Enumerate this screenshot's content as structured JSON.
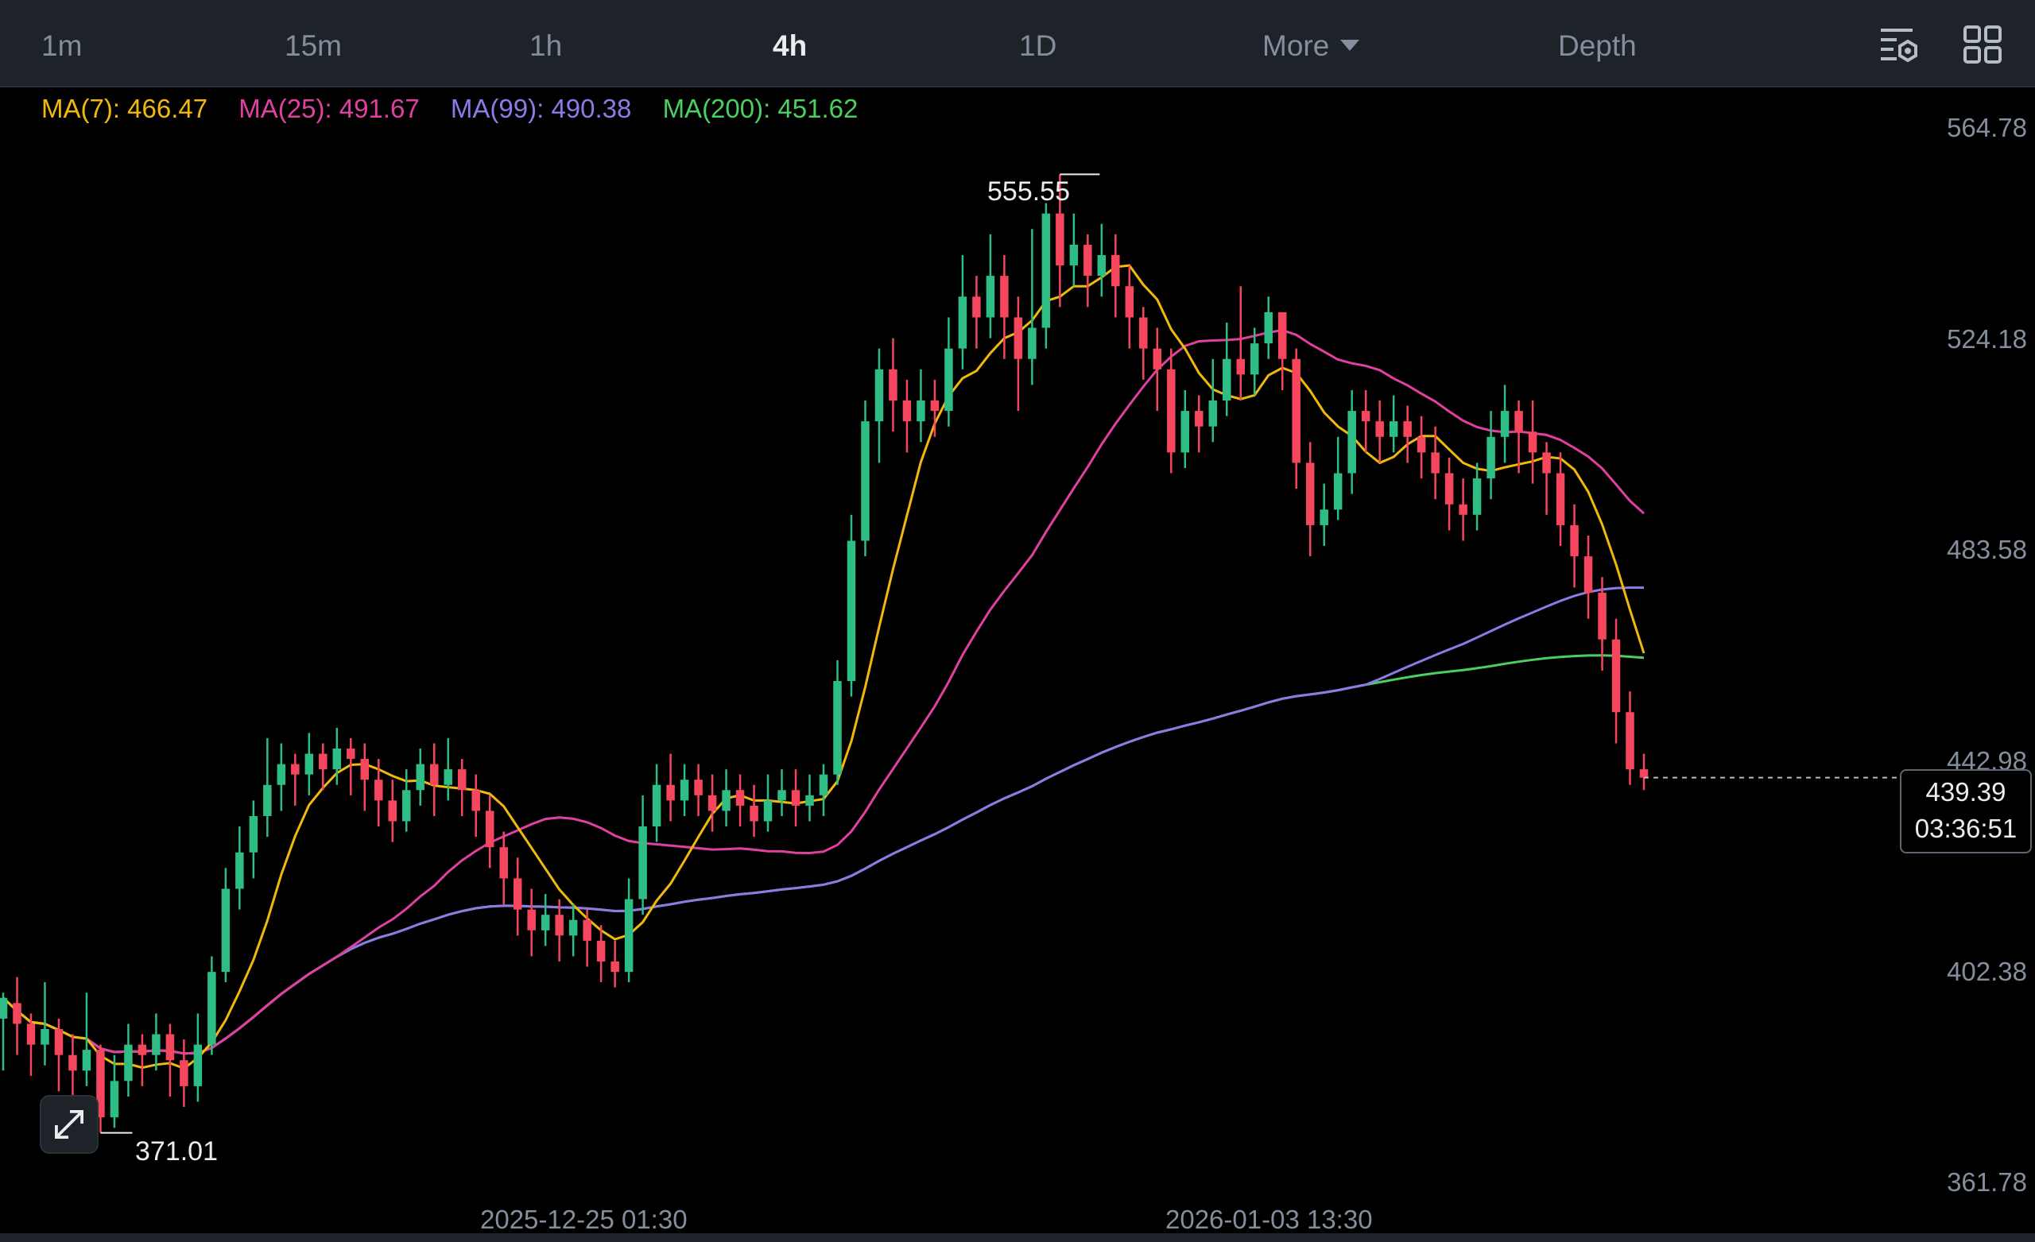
{
  "toolbar": {
    "intervals": [
      "1m",
      "15m",
      "1h",
      "4h",
      "1D"
    ],
    "active_interval": "4h",
    "more_label": "More",
    "depth_label": "Depth"
  },
  "ma_legend": {
    "ma7": "MA(7): 466.47",
    "ma25": "MA(25): 491.67",
    "ma99": "MA(99): 490.38",
    "ma200": "MA(200): 451.62"
  },
  "colors": {
    "up": "#2ebd85",
    "down": "#f6465d",
    "ma7": "#f0b90b",
    "ma25": "#e040a0",
    "ma99": "#8c7ae6",
    "ma200": "#4ccf62"
  },
  "price_axis": [
    "564.78",
    "524.18",
    "483.58",
    "442.98",
    "402.38",
    "361.78"
  ],
  "last_price": {
    "price": "439.39",
    "countdown": "03:36:51"
  },
  "high_label": "555.55",
  "low_label": "371.01",
  "time_axis": [
    "2025-12-25 01:30",
    "2026-01-03 13:30"
  ],
  "chart_data": {
    "type": "candlestick",
    "ylim": [
      361.78,
      564.78
    ],
    "y_ticks": [
      564.78,
      524.18,
      483.58,
      442.98,
      402.38,
      361.78
    ],
    "candles": [
      [
        393,
        397,
        383,
        398
      ],
      [
        396,
        392,
        386,
        401
      ],
      [
        392,
        388,
        382,
        394
      ],
      [
        388,
        391,
        384,
        400
      ],
      [
        391,
        386,
        379,
        393
      ],
      [
        386,
        383,
        377,
        390
      ],
      [
        383,
        387,
        380,
        398
      ],
      [
        387,
        374,
        371.01,
        388
      ],
      [
        374,
        381,
        372,
        386
      ],
      [
        381,
        388,
        378,
        392
      ],
      [
        388,
        386,
        380,
        390
      ],
      [
        386,
        390,
        383,
        394
      ],
      [
        390,
        385,
        378,
        392
      ],
      [
        385,
        380,
        376,
        389
      ],
      [
        380,
        388,
        377,
        394
      ],
      [
        388,
        402,
        386,
        405
      ],
      [
        402,
        418,
        400,
        422
      ],
      [
        418,
        425,
        414,
        430
      ],
      [
        425,
        432,
        420,
        435
      ],
      [
        432,
        438,
        428,
        447
      ],
      [
        438,
        442,
        433,
        446
      ],
      [
        442,
        440,
        434,
        444
      ],
      [
        440,
        444,
        436,
        448
      ],
      [
        444,
        441,
        437,
        446
      ],
      [
        441,
        445,
        438,
        449
      ],
      [
        445,
        443,
        436,
        447
      ],
      [
        443,
        439,
        433,
        446
      ],
      [
        439,
        435,
        430,
        443
      ],
      [
        435,
        431,
        427,
        439
      ],
      [
        431,
        437,
        429,
        441
      ],
      [
        437,
        442,
        434,
        445
      ],
      [
        442,
        438,
        432,
        446
      ],
      [
        438,
        441,
        435,
        447
      ],
      [
        441,
        437,
        432,
        443
      ],
      [
        437,
        433,
        428,
        440
      ],
      [
        433,
        426,
        422,
        436
      ],
      [
        426,
        420,
        415,
        429
      ],
      [
        420,
        414,
        409,
        424
      ],
      [
        414,
        410,
        405,
        418
      ],
      [
        410,
        413,
        407,
        417
      ],
      [
        413,
        409,
        404,
        416
      ],
      [
        409,
        412,
        405,
        415
      ],
      [
        412,
        408,
        403,
        414
      ],
      [
        408,
        404,
        400,
        411
      ],
      [
        404,
        402,
        399,
        408
      ],
      [
        402,
        416,
        400,
        420
      ],
      [
        416,
        430,
        413,
        436
      ],
      [
        430,
        438,
        427,
        442
      ],
      [
        438,
        435,
        431,
        444
      ],
      [
        435,
        439,
        432,
        442
      ],
      [
        439,
        436,
        432,
        442
      ],
      [
        436,
        433,
        429,
        440
      ],
      [
        433,
        437,
        430,
        441
      ],
      [
        437,
        434,
        430,
        440
      ],
      [
        434,
        431,
        428,
        438
      ],
      [
        431,
        435,
        429,
        440
      ],
      [
        435,
        437,
        432,
        441
      ],
      [
        437,
        434,
        430,
        441
      ],
      [
        434,
        436,
        431,
        440
      ],
      [
        436,
        440,
        432,
        442
      ],
      [
        440,
        458,
        438,
        462
      ],
      [
        458,
        485,
        455,
        490
      ],
      [
        485,
        508,
        482,
        512
      ],
      [
        508,
        518,
        500,
        522
      ],
      [
        518,
        512,
        506,
        524
      ],
      [
        512,
        508,
        502,
        516
      ],
      [
        508,
        512,
        504,
        518
      ],
      [
        512,
        510,
        505,
        516
      ],
      [
        510,
        522,
        507,
        528
      ],
      [
        522,
        532,
        518,
        540
      ],
      [
        532,
        528,
        522,
        536
      ],
      [
        528,
        536,
        524,
        544
      ],
      [
        536,
        528,
        520,
        540
      ],
      [
        528,
        520,
        510,
        532
      ],
      [
        520,
        526,
        515,
        545
      ],
      [
        526,
        548,
        522,
        550
      ],
      [
        548,
        538,
        530,
        555.55
      ],
      [
        538,
        542,
        534,
        548
      ],
      [
        542,
        536,
        530,
        544
      ],
      [
        536,
        540,
        532,
        546
      ],
      [
        540,
        534,
        528,
        544
      ],
      [
        534,
        528,
        522,
        538
      ],
      [
        528,
        522,
        516,
        530
      ],
      [
        522,
        518,
        510,
        526
      ],
      [
        518,
        502,
        498,
        522
      ],
      [
        502,
        510,
        499,
        514
      ],
      [
        510,
        507,
        502,
        513
      ],
      [
        507,
        512,
        504,
        520
      ],
      [
        512,
        520,
        509,
        527
      ],
      [
        520,
        517,
        512,
        534
      ],
      [
        517,
        523,
        513,
        526
      ],
      [
        523,
        529,
        520,
        532
      ],
      [
        529,
        520,
        514,
        528
      ],
      [
        520,
        500,
        495,
        522
      ],
      [
        500,
        488,
        482,
        504
      ],
      [
        488,
        491,
        484,
        496
      ],
      [
        491,
        498,
        489,
        505
      ],
      [
        498,
        510,
        494,
        514
      ],
      [
        510,
        508,
        502,
        514
      ],
      [
        508,
        505,
        500,
        512
      ],
      [
        505,
        508,
        502,
        513
      ],
      [
        508,
        505,
        500,
        511
      ],
      [
        505,
        502,
        497,
        509
      ],
      [
        502,
        498,
        493,
        507
      ],
      [
        498,
        492,
        487,
        501
      ],
      [
        492,
        490,
        485,
        497
      ],
      [
        490,
        497,
        487,
        500
      ],
      [
        497,
        505,
        493,
        510
      ],
      [
        505,
        510,
        500,
        515
      ],
      [
        510,
        506,
        498,
        512
      ],
      [
        506,
        502,
        496,
        512
      ],
      [
        502,
        498,
        490,
        504
      ],
      [
        498,
        488,
        484,
        502
      ],
      [
        488,
        482,
        476,
        492
      ],
      [
        482,
        475,
        470,
        486
      ],
      [
        475,
        466,
        460,
        478
      ],
      [
        466,
        452,
        446,
        470
      ],
      [
        452,
        441,
        438,
        456
      ],
      [
        441,
        439.39,
        437,
        444
      ]
    ]
  }
}
